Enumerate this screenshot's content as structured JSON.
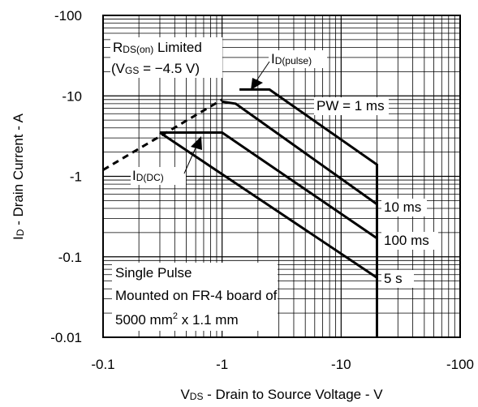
{
  "chart_data": {
    "type": "line",
    "xscale": "log",
    "yscale": "log",
    "xlim": [
      -0.1,
      -100
    ],
    "ylim": [
      -0.01,
      -100
    ],
    "grid": true,
    "x_tick_labels": [
      "-0.1",
      "-1",
      "-10",
      "-100"
    ],
    "y_tick_labels": [
      "-100",
      "-10",
      "-1",
      "-0.1",
      "-0.01"
    ],
    "xlabel": {
      "prefix": "V",
      "sub": "DS",
      "rest": " - Drain to Source Voltage - V"
    },
    "ylabel": {
      "prefix": "I",
      "sub": "D",
      "rest": " - Drain Current - A"
    },
    "series": [
      {
        "name": "RDS(on) Limited",
        "style": "dashed",
        "points": [
          [
            -0.1,
            -1.2
          ],
          [
            -1.0,
            -9.0
          ]
        ]
      },
      {
        "name": "PW = 1 ms",
        "points": [
          [
            -1.4,
            -12.0
          ],
          [
            -2.5,
            -12.0
          ],
          [
            -20,
            -1.4
          ],
          [
            -20,
            -0.01
          ]
        ]
      },
      {
        "name": "10 ms",
        "points": [
          [
            -1.0,
            -8.5
          ],
          [
            -1.3,
            -8.0
          ],
          [
            -20,
            -0.45
          ]
        ]
      },
      {
        "name": "100 ms",
        "points": [
          [
            -0.3,
            -3.5
          ],
          [
            -1.0,
            -3.5
          ],
          [
            -20,
            -0.17
          ]
        ]
      },
      {
        "name": "5 s",
        "points": [
          [
            -0.3,
            -3.5
          ],
          [
            -20,
            -0.055
          ]
        ]
      }
    ],
    "annotations": {
      "rds": {
        "prefix": "R",
        "sub": "DS(on)",
        "rest": " Limited"
      },
      "vgs": {
        "open": "(V",
        "sub": "GS",
        "rest": " = −4.5 V)"
      },
      "id_pulse": {
        "prefix": "I",
        "sub": "D(pulse)"
      },
      "id_dc": {
        "prefix": "I",
        "sub": "D(DC)"
      },
      "pw_1ms": "PW = 1 ms",
      "pw_10ms": "10 ms",
      "pw_100ms": "100 ms",
      "pw_5s": "5 s",
      "note_line1": "Single Pulse",
      "note_line2": "Mounted on FR-4 board of",
      "note_line3_a": "5000 mm",
      "note_line3_sup": "2",
      "note_line3_b": " x 1.1 mm"
    }
  }
}
